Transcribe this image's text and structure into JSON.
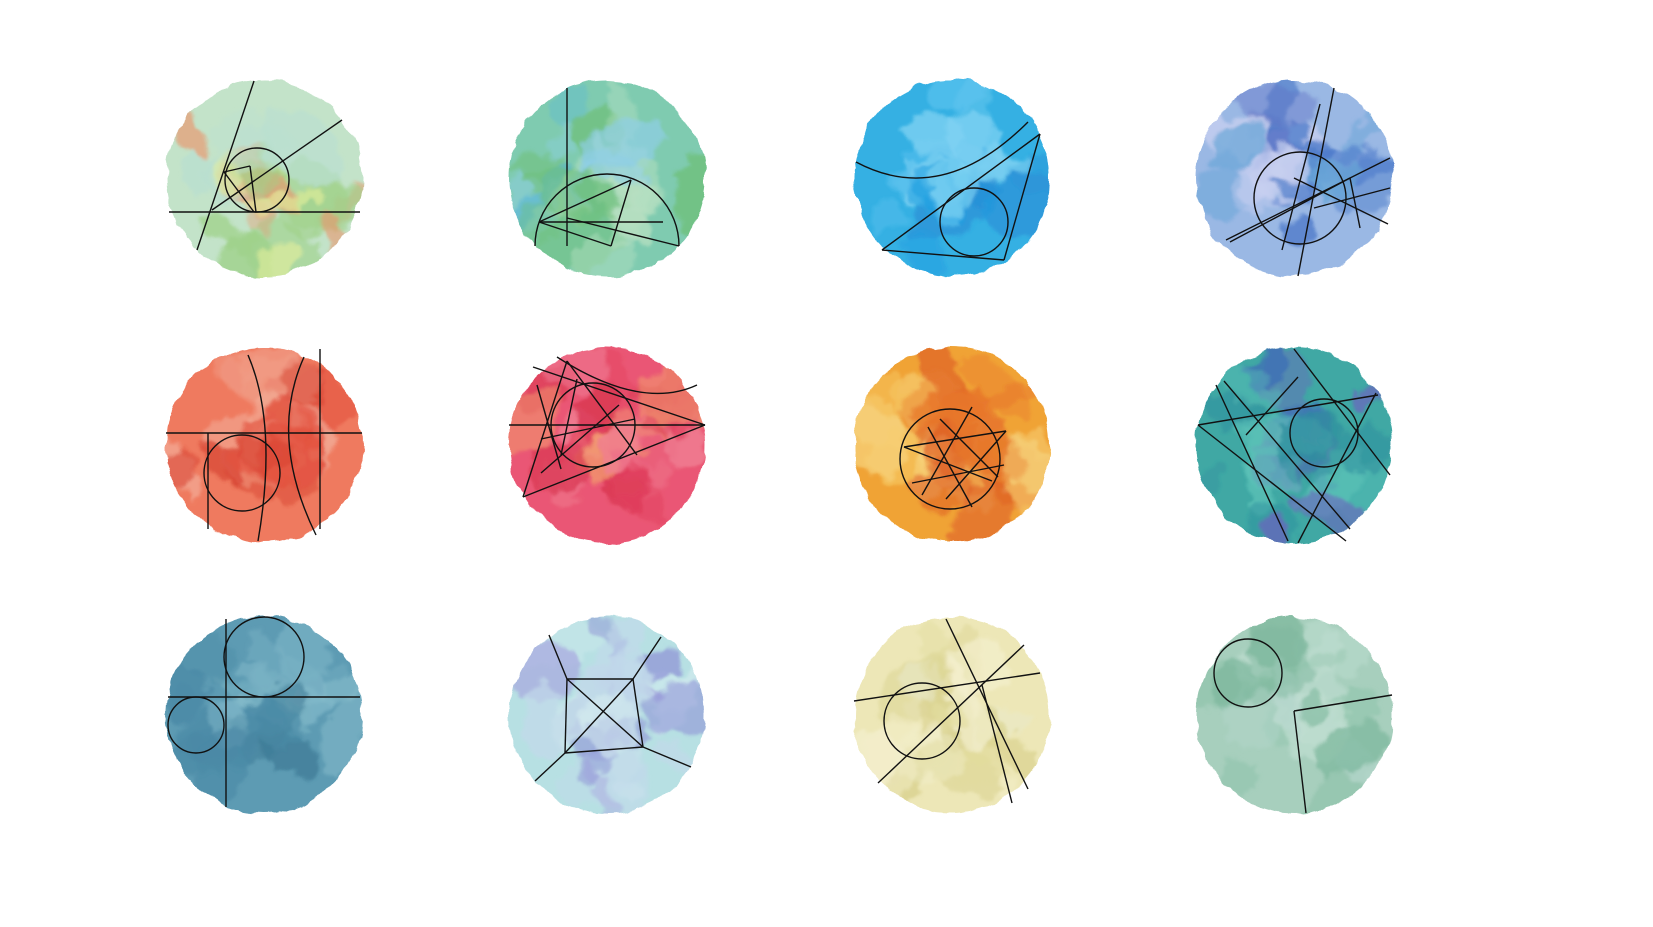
{
  "illustration": {
    "medallions": [
      {
        "name": "green-watercolor-medallion",
        "palette": [
          "#c3e3c9",
          "#9fd18a",
          "#e3ef9b",
          "#b9dfd0",
          "#e79b72"
        ],
        "figure": "circle-inscribed-in-angle"
      },
      {
        "name": "teal-watercolor-medallion",
        "palette": [
          "#7fcbb0",
          "#6ec07b",
          "#8fcfe6",
          "#b8e0c2",
          "#5cb7d6"
        ],
        "figure": "semicircle-with-triangles"
      },
      {
        "name": "sky-blue-watercolor-medallion",
        "palette": [
          "#34b0e3",
          "#5ec3ef",
          "#2a8fd6",
          "#7fd2f2",
          "#1f9ee0"
        ],
        "figure": "curve-with-incircle-triangle"
      },
      {
        "name": "periwinkle-watercolor-medallion",
        "palette": [
          "#9ab8e4",
          "#5f6fc4",
          "#c8d0f0",
          "#4b79c9",
          "#6aa6d8"
        ],
        "figure": "star-in-circle"
      },
      {
        "name": "coral-watercolor-medallion",
        "palette": [
          "#ef7a5f",
          "#e3513e",
          "#f19b84",
          "#d6402f",
          "#f3b39f"
        ],
        "figure": "circle-between-arcs"
      },
      {
        "name": "raspberry-watercolor-medallion",
        "palette": [
          "#ea5774",
          "#e2405f",
          "#f07f93",
          "#d8344f",
          "#f29b6e"
        ],
        "figure": "pentagram-with-tangent-lines"
      },
      {
        "name": "amber-watercolor-medallion",
        "palette": [
          "#f0a336",
          "#e7762b",
          "#f5c25a",
          "#dd5a24",
          "#f7d27a"
        ],
        "figure": "star-polygon-in-circle"
      },
      {
        "name": "sea-green-watercolor-medallion",
        "palette": [
          "#3fa8a4",
          "#3f6fb6",
          "#5cc2b8",
          "#2f8e9e",
          "#6e5fc0"
        ],
        "figure": "star-with-incircle"
      },
      {
        "name": "slate-blue-watercolor-medallion",
        "palette": [
          "#5d9bb3",
          "#4b8aa6",
          "#78b1c4",
          "#3f7c97",
          "#8ac0cf"
        ],
        "figure": "two-tangent-circles-on-axes"
      },
      {
        "name": "lavender-watercolor-medallion",
        "palette": [
          "#b7e0e3",
          "#a7a8df",
          "#d3ecef",
          "#8f93d6",
          "#c2d9ea"
        ],
        "figure": "quadrilateral-with-diagonals"
      },
      {
        "name": "cream-watercolor-medallion",
        "palette": [
          "#ede7b7",
          "#e2dc9f",
          "#f3efcd",
          "#d8d08c",
          "#e9ead0"
        ],
        "figure": "circle-with-secants"
      },
      {
        "name": "sage-watercolor-medallion",
        "palette": [
          "#a7cfbd",
          "#8fc4ab",
          "#c1dfd2",
          "#7db89d",
          "#b5d6cc"
        ],
        "figure": "circle-and-right-angle"
      }
    ]
  }
}
